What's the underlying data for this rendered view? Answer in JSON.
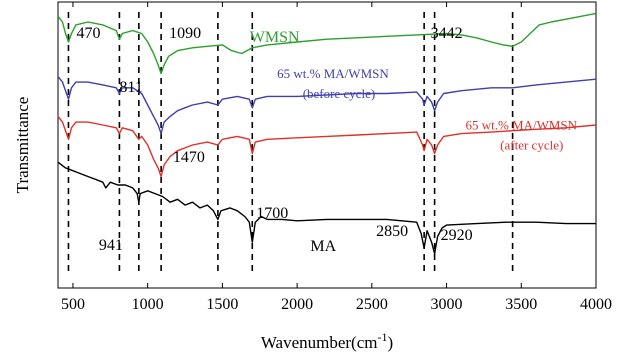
{
  "chart_data": {
    "type": "line",
    "title": "",
    "xlabel": "Wavenumber(cm",
    "xlabel_sup": "-1",
    "xlabel_close": ")",
    "ylabel": "Transmittance",
    "xlim": [
      400,
      4000
    ],
    "ylim": [
      0,
      1
    ],
    "grid": false,
    "x_ticks": [
      "500",
      "1000",
      "1500",
      "2000",
      "2500",
      "3000",
      "3500",
      "4000"
    ],
    "x_tick_values": [
      500,
      1000,
      1500,
      2000,
      2500,
      3000,
      3500,
      4000
    ],
    "peak_lines": [
      470,
      811,
      941,
      1090,
      1470,
      1700,
      2850,
      2920,
      3442
    ],
    "peak_labels": [
      {
        "text": "470",
        "x": 470
      },
      {
        "text": "811",
        "x": 811
      },
      {
        "text": "1090",
        "x": 1090
      },
      {
        "text": "3442",
        "x": 3442
      },
      {
        "text": "1470",
        "x": 1470
      },
      {
        "text": "1700",
        "x": 1700
      },
      {
        "text": "941",
        "x": 941
      },
      {
        "text": "2850",
        "x": 2850
      },
      {
        "text": "2920",
        "x": 2920
      }
    ],
    "series": [
      {
        "name": "WMSN",
        "color": "#2ca02c",
        "x": [
          400,
          430,
          450,
          470,
          490,
          520,
          600,
          700,
          790,
          811,
          830,
          900,
          960,
          1000,
          1040,
          1070,
          1090,
          1110,
          1140,
          1200,
          1300,
          1400,
          1500,
          1560,
          1630,
          1700,
          1800,
          2000,
          2200,
          2400,
          2600,
          2800,
          3000,
          3100,
          3200,
          3300,
          3380,
          3442,
          3500,
          3560,
          3620,
          3700,
          3800,
          3900,
          4000
        ],
        "y": [
          0.95,
          0.93,
          0.89,
          0.86,
          0.89,
          0.92,
          0.93,
          0.92,
          0.9,
          0.87,
          0.89,
          0.9,
          0.89,
          0.86,
          0.82,
          0.78,
          0.75,
          0.78,
          0.81,
          0.83,
          0.84,
          0.845,
          0.85,
          0.83,
          0.82,
          0.84,
          0.85,
          0.86,
          0.87,
          0.875,
          0.88,
          0.885,
          0.89,
          0.885,
          0.875,
          0.86,
          0.85,
          0.845,
          0.86,
          0.89,
          0.92,
          0.93,
          0.94,
          0.95,
          0.96
        ]
      },
      {
        "name": "65 wt.% MA/WMSN",
        "name2": "(before cycle)",
        "color": "#3f3fb0",
        "x": [
          400,
          430,
          450,
          470,
          490,
          520,
          600,
          700,
          790,
          811,
          830,
          900,
          960,
          1000,
          1040,
          1070,
          1090,
          1110,
          1150,
          1200,
          1250,
          1300,
          1400,
          1470,
          1500,
          1600,
          1680,
          1700,
          1720,
          1800,
          2000,
          2200,
          2400,
          2600,
          2800,
          2840,
          2850,
          2870,
          2900,
          2920,
          2940,
          2980,
          3100,
          3300,
          3442,
          3600,
          3800,
          4000
        ],
        "y": [
          0.74,
          0.72,
          0.69,
          0.66,
          0.7,
          0.72,
          0.72,
          0.71,
          0.7,
          0.68,
          0.7,
          0.7,
          0.68,
          0.64,
          0.6,
          0.57,
          0.54,
          0.58,
          0.6,
          0.62,
          0.63,
          0.64,
          0.65,
          0.64,
          0.66,
          0.67,
          0.66,
          0.63,
          0.66,
          0.67,
          0.67,
          0.675,
          0.68,
          0.68,
          0.685,
          0.66,
          0.64,
          0.67,
          0.65,
          0.62,
          0.65,
          0.68,
          0.69,
          0.7,
          0.7,
          0.71,
          0.72,
          0.73
        ]
      },
      {
        "name": "65 wt.% MA/WMSN",
        "name2": "(after cycle)",
        "color": "#e0302a",
        "x": [
          400,
          430,
          450,
          470,
          490,
          520,
          600,
          700,
          790,
          811,
          830,
          900,
          941,
          960,
          1000,
          1040,
          1070,
          1090,
          1110,
          1150,
          1200,
          1250,
          1300,
          1400,
          1470,
          1500,
          1600,
          1680,
          1700,
          1720,
          1800,
          2000,
          2200,
          2400,
          2600,
          2800,
          2840,
          2850,
          2870,
          2900,
          2920,
          2940,
          2980,
          3100,
          3300,
          3442,
          3600,
          3800,
          4000
        ],
        "y": [
          0.6,
          0.58,
          0.55,
          0.52,
          0.56,
          0.58,
          0.58,
          0.57,
          0.56,
          0.54,
          0.56,
          0.55,
          0.52,
          0.53,
          0.5,
          0.45,
          0.42,
          0.39,
          0.43,
          0.46,
          0.48,
          0.49,
          0.5,
          0.51,
          0.5,
          0.52,
          0.53,
          0.52,
          0.47,
          0.51,
          0.52,
          0.525,
          0.53,
          0.535,
          0.54,
          0.545,
          0.5,
          0.48,
          0.52,
          0.5,
          0.47,
          0.5,
          0.53,
          0.54,
          0.545,
          0.55,
          0.555,
          0.56,
          0.57
        ]
      },
      {
        "name": "MA",
        "color": "#000000",
        "x": [
          400,
          450,
          500,
          550,
          600,
          650,
          700,
          720,
          750,
          800,
          850,
          900,
          930,
          941,
          950,
          1000,
          1050,
          1100,
          1150,
          1200,
          1250,
          1300,
          1350,
          1400,
          1440,
          1470,
          1490,
          1550,
          1600,
          1650,
          1680,
          1700,
          1720,
          1760,
          1800,
          1900,
          2000,
          2200,
          2400,
          2600,
          2700,
          2800,
          2830,
          2850,
          2870,
          2900,
          2920,
          2940,
          2970,
          3000,
          3200,
          3400,
          3600,
          3800,
          4000
        ],
        "y": [
          0.44,
          0.42,
          0.41,
          0.4,
          0.39,
          0.38,
          0.37,
          0.35,
          0.37,
          0.36,
          0.36,
          0.35,
          0.33,
          0.3,
          0.33,
          0.34,
          0.33,
          0.32,
          0.3,
          0.31,
          0.29,
          0.3,
          0.28,
          0.29,
          0.27,
          0.24,
          0.27,
          0.28,
          0.27,
          0.25,
          0.23,
          0.16,
          0.23,
          0.25,
          0.24,
          0.24,
          0.235,
          0.24,
          0.24,
          0.24,
          0.235,
          0.23,
          0.19,
          0.14,
          0.2,
          0.16,
          0.12,
          0.18,
          0.21,
          0.22,
          0.225,
          0.23,
          0.23,
          0.225,
          0.225
        ]
      }
    ],
    "series_labels": [
      {
        "text": "WMSN",
        "x": 1850,
        "y": 0.86
      },
      {
        "text": "65 wt.% MA/WMSN",
        "x": 2240,
        "y": 0.735
      },
      {
        "text": "(before cycle)",
        "x": 2280,
        "y": 0.665
      },
      {
        "text": "65 wt.% MA/WMSN",
        "x": 3500,
        "y": 0.555
      },
      {
        "text": "(after cycle)",
        "x": 3570,
        "y": 0.485
      },
      {
        "text": "MA",
        "x": 2175,
        "y": 0.13
      }
    ]
  }
}
